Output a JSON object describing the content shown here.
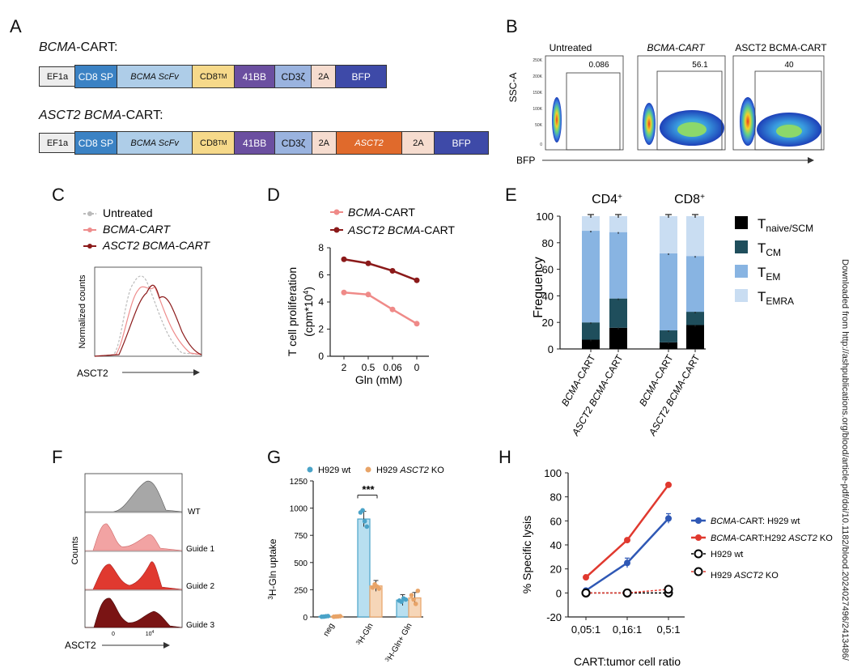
{
  "panels": {
    "A": "A",
    "B": "B",
    "C": "C",
    "D": "D",
    "E": "E",
    "F": "F",
    "G": "G",
    "H": "H"
  },
  "panel_a": {
    "construct1_title": {
      "italic": "BCMA",
      "rest": "-CART:"
    },
    "construct1_segments": [
      {
        "label": "CD8 SP",
        "color": "#3b82c4"
      },
      {
        "label": "BCMA ScFv",
        "color": "#aecde8"
      },
      {
        "label": "CD8TM",
        "color": "#f6d98a"
      },
      {
        "label": "41BB",
        "color": "#6b4fa0"
      },
      {
        "label": "CD3ζ",
        "color": "#9ab3df"
      },
      {
        "label": "2A",
        "color": "#f6dccf"
      },
      {
        "label": "BFP",
        "color": "#3e4aa8"
      }
    ],
    "construct2_title": {
      "italic": "ASCT2 BCMA",
      "rest": "-CART:"
    },
    "construct2_segments": [
      {
        "label": "CD8 SP",
        "color": "#3b82c4"
      },
      {
        "label": "BCMA ScFv",
        "color": "#aecde8"
      },
      {
        "label": "CD8TM",
        "color": "#f6d98a"
      },
      {
        "label": "41BB",
        "color": "#6b4fa0"
      },
      {
        "label": "CD3ζ",
        "color": "#9ab3df"
      },
      {
        "label": "2A",
        "color": "#f6dccf"
      },
      {
        "label": "ASCT2",
        "color": "#e06a2c"
      },
      {
        "label": "2A",
        "color": "#f6dccf"
      },
      {
        "label": "BFP",
        "color": "#3e4aa8"
      }
    ],
    "promoter": "EF1a"
  },
  "panel_b": {
    "titles": [
      "Untreated",
      "BCMA-CART",
      "ASCT2 BCMA-CART"
    ],
    "gate_values": [
      "0.086",
      "56.1",
      "40"
    ],
    "y_axis": "SSC-A",
    "x_axis": "BFP",
    "yticks": [
      "250K",
      "200K",
      "150K",
      "100K",
      "50K",
      "0"
    ]
  },
  "panel_c": {
    "legend": [
      "Untreated",
      "BCMA-CART",
      "ASCT2 BCMA-CART"
    ],
    "y_axis": "Normalized counts",
    "x_axis": "ASCT2",
    "colors": [
      "#bbbbbb",
      "#ee8c8c",
      "#8b1a1a"
    ]
  },
  "chart_data": [
    {
      "id": "D",
      "type": "line",
      "categories": [
        "2",
        "0.5",
        "0.06",
        "0"
      ],
      "series": [
        {
          "name": "BCMA-CART",
          "values": [
            4.7,
            4.55,
            3.45,
            2.4
          ],
          "color": "#ef8a88"
        },
        {
          "name": "ASCT2 BCMA-CART",
          "values": [
            7.15,
            6.85,
            6.3,
            5.6
          ],
          "color": "#8b1a1a"
        }
      ],
      "xlabel": "Gln (mM)",
      "ylabel": "T cell proliferation (cpm*10^4)",
      "ylim": [
        0,
        8
      ],
      "yticks": [
        "0",
        "2",
        "4",
        "6",
        "8"
      ]
    },
    {
      "id": "E",
      "type": "bar",
      "groups": [
        "CD4+",
        "CD8+"
      ],
      "categories": [
        "BCMA-CART",
        "ASCT2 BCMA-CART",
        "BCMA-CART",
        "ASCT2 BCMA-CART"
      ],
      "series": [
        {
          "name": "T naive/SCM",
          "values": [
            7,
            16,
            5,
            18
          ],
          "color": "#000000"
        },
        {
          "name": "T CM",
          "values": [
            13,
            22,
            9,
            10
          ],
          "color": "#1f4e5c"
        },
        {
          "name": "T EM",
          "values": [
            69,
            50,
            58,
            42
          ],
          "color": "#88b4e2"
        },
        {
          "name": "T EMRA",
          "values": [
            11,
            12,
            28,
            30
          ],
          "color": "#c9ddf2"
        }
      ],
      "ylabel": "Frequency",
      "ylim": [
        0,
        100
      ],
      "yticks": [
        "0",
        "20",
        "40",
        "60",
        "80",
        "100"
      ]
    },
    {
      "id": "G",
      "type": "bar",
      "categories": [
        "neg",
        "3H-Gln",
        "3H-Gln+ Gln"
      ],
      "series": [
        {
          "name": "H929 wt",
          "values": [
            5,
            900,
            155
          ],
          "color": "#4aa3c8"
        },
        {
          "name": "H929 ASCT2 KO",
          "values": [
            5,
            285,
            175
          ],
          "color": "#e8a468"
        }
      ],
      "ylabel": "3H-Gln uptake",
      "ylim": [
        0,
        1250
      ],
      "yticks": [
        "0",
        "250",
        "500",
        "750",
        "1000",
        "1250"
      ],
      "significance": "***"
    },
    {
      "id": "H",
      "type": "line",
      "categories": [
        "0,05:1",
        "0,16:1",
        "0,5:1"
      ],
      "series": [
        {
          "name": "BCMA-CART: H929 wt",
          "values": [
            2,
            25,
            62
          ],
          "color": "#2f58b5"
        },
        {
          "name": "BCMA-CART:H292 ASCT2 KO",
          "values": [
            13,
            44,
            90
          ],
          "color": "#e0392f"
        },
        {
          "name": "H929 wt",
          "values": [
            0,
            0,
            0
          ],
          "color": "#000000"
        },
        {
          "name": "H929 ASCT2 KO",
          "values": [
            0,
            0,
            3
          ],
          "color": "#e0392f"
        }
      ],
      "xlabel": "CART:tumor cell ratio",
      "ylabel": "% Specific lysis",
      "ylim": [
        -20,
        100
      ],
      "yticks": [
        "-20",
        "0",
        "20",
        "40",
        "60",
        "80",
        "100"
      ]
    }
  ],
  "panel_d_legend": [
    {
      "italic": "BCMA",
      "rest": "-CART"
    },
    {
      "italic": "ASCT2 BCMA",
      "rest": "-CART"
    }
  ],
  "panel_e_legend": [
    "T",
    "T",
    "T",
    "T"
  ],
  "panel_e_subs": [
    "naive/SCM",
    "CM",
    "EM",
    "EMRA"
  ],
  "panel_f": {
    "labels": [
      "WT",
      "Guide 1",
      "Guide 2",
      "Guide 3"
    ],
    "y_axis": "Counts",
    "x_axis": "ASCT2"
  },
  "panel_g_legend": [
    {
      "text": "H929 wt",
      "italic": ""
    },
    {
      "text": "H929 ",
      "italic": "ASCT2",
      "rest": " KO"
    }
  ],
  "panel_h_legend": [
    {
      "italic": "BCMA",
      "rest": "-CART: H929 wt"
    },
    {
      "italic": "BCMA",
      "rest": "-CART:H292 ",
      "italic2": "ASCT2",
      "rest2": " KO"
    },
    {
      "text": "H929 wt"
    },
    {
      "text": "H929 ",
      "italic": "ASCT2",
      "rest": " KO"
    }
  ],
  "side_text": "Downloaded from http://ashpublications.org/blood/article-pdf/doi/10.1182/blood.2024027496/2413486/"
}
